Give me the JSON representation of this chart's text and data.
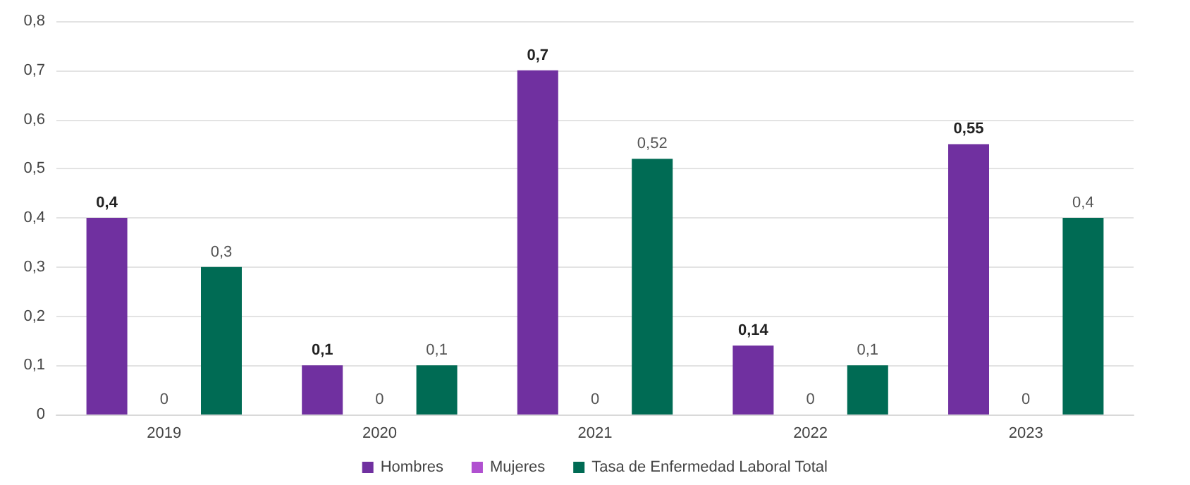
{
  "chart_data": {
    "type": "bar",
    "categories": [
      "2019",
      "2020",
      "2021",
      "2022",
      "2023"
    ],
    "series": [
      {
        "name": "Hombres",
        "color": "#7030a0",
        "values": [
          0.4,
          0.1,
          0.7,
          0.14,
          0.55
        ],
        "value_labels": [
          "0,4",
          "0,1",
          "0,7",
          "0,14",
          "0,55"
        ]
      },
      {
        "name": "Mujeres",
        "color": "#b050d0",
        "values": [
          0,
          0,
          0,
          0,
          0
        ],
        "value_labels": [
          "0",
          "0",
          "0",
          "0",
          "0"
        ]
      },
      {
        "name": "Tasa de Enfermedad Laboral Total",
        "color": "#006b54",
        "values": [
          0.3,
          0.1,
          0.52,
          0.1,
          0.4
        ],
        "value_labels": [
          "0,3",
          "0,1",
          "0,52",
          "0,1",
          "0,4"
        ]
      }
    ],
    "ylim": [
      0,
      0.8
    ],
    "yticks": [
      0,
      {
        "value": 0.1,
        "label": "0,1"
      },
      {
        "value": 0.2,
        "label": "0,2"
      },
      {
        "value": 0.3,
        "label": "0,3"
      },
      {
        "value": 0.4,
        "label": "0,4"
      },
      {
        "value": 0.5,
        "label": "0,5"
      },
      {
        "value": 0.6,
        "label": "0,6"
      },
      {
        "value": 0.7,
        "label": "0,7"
      },
      {
        "value": 0.8,
        "label": "0,8"
      }
    ],
    "grid": "y",
    "legend": "bottom"
  }
}
